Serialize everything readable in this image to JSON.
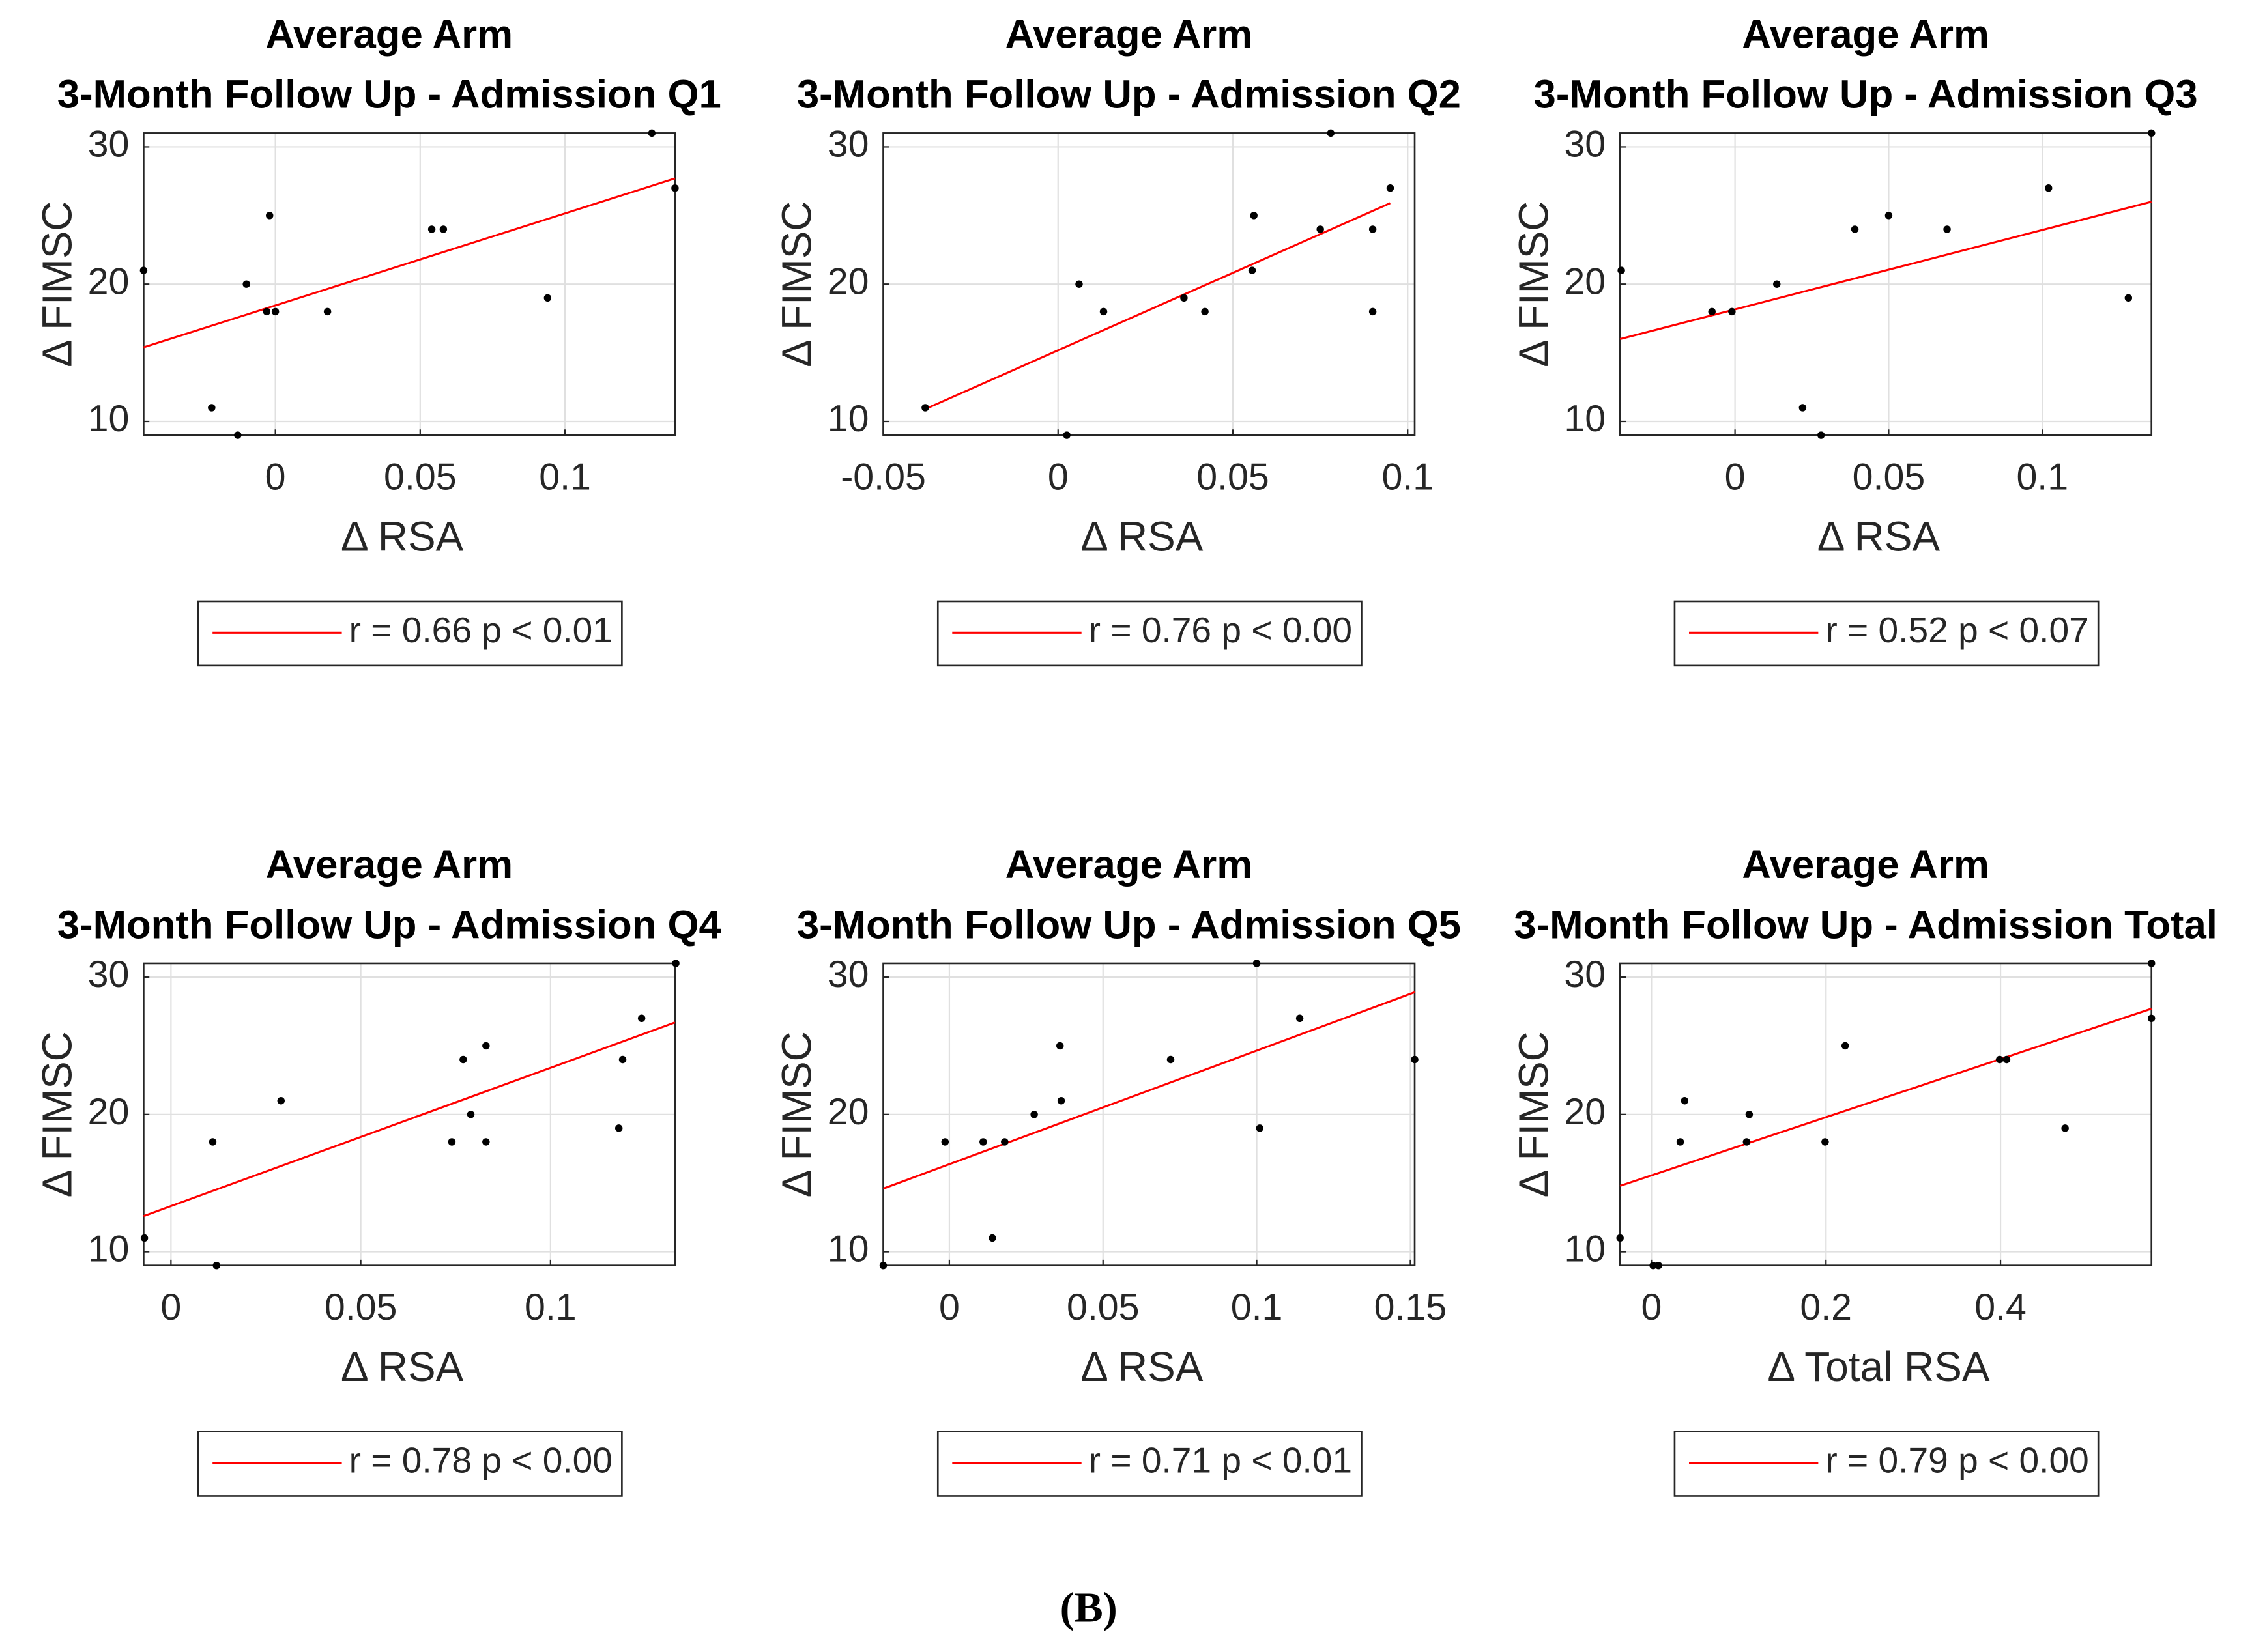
{
  "chart_data": [
    {
      "type": "scatter",
      "title": "Average Arm",
      "subtitle": "3-Month Follow Up - Admission Q1",
      "xlabel": "Δ RSA",
      "ylabel": "Δ FIMSC",
      "xlim": [
        -0.0455,
        0.138
      ],
      "ylim": [
        9,
        31
      ],
      "xticks": [
        0,
        0.05,
        0.1
      ],
      "yticks": [
        10,
        20,
        30
      ],
      "grid": true,
      "points": {
        "color": "#000000",
        "x": [
          -0.0455,
          -0.022,
          -0.013,
          -0.01,
          -0.002,
          -0.003,
          0,
          0.018,
          0.054,
          0.058,
          0.094,
          0.13,
          0.138
        ],
        "y": [
          21,
          11,
          9,
          20,
          25,
          18,
          18,
          18,
          24,
          24,
          19,
          31,
          27
        ]
      },
      "fit": {
        "name": "r = 0.66 p < 0.01",
        "color": "#ff0000",
        "x": [
          -0.0455,
          0.138
        ],
        "y": [
          15.4,
          27.7
        ]
      }
    },
    {
      "type": "scatter",
      "title": "Average Arm",
      "subtitle": "3-Month Follow Up - Admission Q2",
      "xlabel": "Δ RSA",
      "ylabel": "Δ FIMSC",
      "xlim": [
        -0.05,
        0.102
      ],
      "ylim": [
        9,
        31
      ],
      "xticks": [
        -0.05,
        0,
        0.05,
        0.1
      ],
      "yticks": [
        10,
        20,
        30
      ],
      "grid": true,
      "points": {
        "color": "#000000",
        "x": [
          -0.038,
          0.0025,
          0.006,
          0.013,
          0.036,
          0.042,
          0.056,
          0.0555,
          0.075,
          0.078,
          0.09,
          0.09,
          0.095
        ],
        "y": [
          11,
          9,
          20,
          18,
          19,
          18,
          25,
          21,
          24,
          31,
          24,
          18,
          27
        ]
      },
      "fit": {
        "name": "r = 0.76 p < 0.00",
        "color": "#ff0000",
        "x": [
          -0.038,
          0.095
        ],
        "y": [
          10.9,
          25.9
        ]
      }
    },
    {
      "type": "scatter",
      "title": "Average Arm",
      "subtitle": "3-Month Follow Up - Admission Q3",
      "xlabel": "Δ RSA",
      "ylabel": "Δ FIMSC",
      "xlim": [
        -0.0374,
        0.1355
      ],
      "ylim": [
        9,
        31
      ],
      "xticks": [
        0,
        0.05,
        0.1
      ],
      "yticks": [
        10,
        20,
        30
      ],
      "grid": true,
      "points": {
        "color": "#000000",
        "x": [
          -0.037,
          -0.0075,
          -0.001,
          0.0136,
          0.022,
          0.028,
          0.039,
          0.05,
          0.069,
          0.102,
          0.128,
          0.1355
        ],
        "y": [
          21,
          18,
          18,
          20,
          11,
          9,
          24,
          25,
          24,
          27,
          19,
          31
        ]
      },
      "fit": {
        "name": "r = 0.52 p < 0.07",
        "color": "#ff0000",
        "x": [
          -0.0374,
          0.1355
        ],
        "y": [
          16,
          26
        ]
      }
    },
    {
      "type": "scatter",
      "title": "Average Arm",
      "subtitle": "3-Month Follow Up - Admission Q4",
      "xlabel": "Δ RSA",
      "ylabel": "Δ FIMSC",
      "xlim": [
        -0.0072,
        0.1328
      ],
      "ylim": [
        9,
        31
      ],
      "xticks": [
        0,
        0.05,
        0.1
      ],
      "yticks": [
        10,
        20,
        30
      ],
      "grid": true,
      "points": {
        "color": "#000000",
        "x": [
          -0.007,
          0.011,
          0.012,
          0.029,
          0.077,
          0.079,
          0.074,
          0.083,
          0.083,
          0.118,
          0.119,
          0.124,
          0.133
        ],
        "y": [
          11,
          18,
          9,
          21,
          24,
          20,
          18,
          25,
          18,
          19,
          24,
          27,
          31
        ]
      },
      "fit": {
        "name": "r = 0.78 p < 0.00",
        "color": "#ff0000",
        "x": [
          -0.0072,
          0.1328
        ],
        "y": [
          12.6,
          26.7
        ]
      }
    },
    {
      "type": "scatter",
      "title": "Average Arm",
      "subtitle": "3-Month Follow Up - Admission Q5",
      "xlabel": "Δ RSA",
      "ylabel": "Δ FIMSC",
      "xlim": [
        -0.0215,
        0.1514
      ],
      "ylim": [
        9,
        31
      ],
      "xticks": [
        0,
        0.05,
        0.1,
        0.15
      ],
      "yticks": [
        10,
        20,
        30
      ],
      "grid": true,
      "points": {
        "color": "#000000",
        "x": [
          -0.0215,
          -0.0014,
          0.011,
          0.014,
          0.018,
          0.0276,
          0.0364,
          0.036,
          0.072,
          0.1,
          0.101,
          0.114,
          0.1514
        ],
        "y": [
          9,
          18,
          18,
          11,
          18,
          20,
          21,
          25,
          24,
          31,
          19,
          27,
          24
        ]
      },
      "fit": {
        "name": "r = 0.71 p < 0.01",
        "color": "#ff0000",
        "x": [
          -0.0215,
          0.1514
        ],
        "y": [
          14.6,
          28.9
        ]
      }
    },
    {
      "type": "scatter",
      "title": "Average Arm",
      "subtitle": "3-Month Follow Up - Admission Total",
      "xlabel": "Δ Total RSA",
      "ylabel": "Δ FIMSC",
      "xlim": [
        -0.036,
        0.573
      ],
      "ylim": [
        9,
        31
      ],
      "xticks": [
        0,
        0.2,
        0.4
      ],
      "yticks": [
        10,
        20,
        30
      ],
      "grid": true,
      "points": {
        "color": "#000000",
        "x": [
          -0.036,
          0.002,
          0.008,
          0.033,
          0.038,
          0.109,
          0.112,
          0.199,
          0.222,
          0.399,
          0.407,
          0.474,
          0.573,
          0.573
        ],
        "y": [
          11,
          9,
          9,
          18,
          21,
          18,
          20,
          18,
          25,
          24,
          24,
          19,
          31,
          27
        ]
      },
      "fit": {
        "name": "r = 0.79 p < 0.00",
        "color": "#ff0000",
        "x": [
          -0.036,
          0.573
        ],
        "y": [
          14.8,
          27.7
        ]
      }
    }
  ],
  "caption": "(B)"
}
